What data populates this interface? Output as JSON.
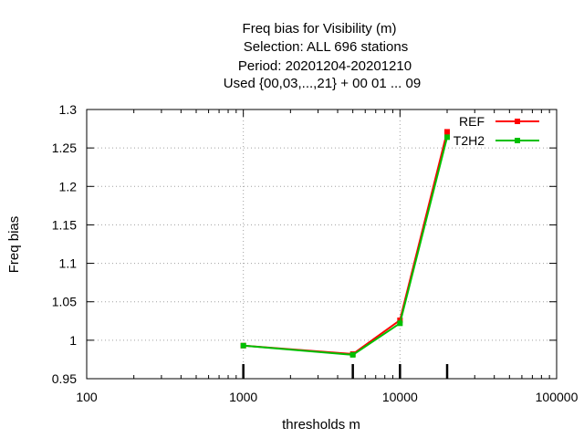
{
  "chart_data": {
    "type": "line",
    "title_lines": [
      "Freq bias  for Visibility (m)",
      "Selection: ALL    696 stations",
      "Period: 20201204-20201210",
      "Used {00,03,...,21} + 00 01 ... 09"
    ],
    "xlabel": "thresholds m",
    "ylabel": "Freq bias",
    "x_scale": "log",
    "xlim": [
      100,
      100000
    ],
    "ylim": [
      0.95,
      1.3
    ],
    "x_ticks": [
      100,
      1000,
      10000,
      100000
    ],
    "x_tick_labels": [
      "100",
      "1000",
      "10000",
      "100000"
    ],
    "y_ticks": [
      0.95,
      1,
      1.05,
      1.1,
      1.15,
      1.2,
      1.25,
      1.3
    ],
    "y_tick_labels": [
      "0.95",
      "1",
      "1.05",
      "1.1",
      "1.15",
      "1.2",
      "1.25",
      "1.3"
    ],
    "grid": true,
    "legend_position": "top-right",
    "threshold_markers": [
      1000,
      5000,
      10000,
      20000
    ],
    "x": [
      1000,
      5000,
      10000,
      20000
    ],
    "series": [
      {
        "name": "REF",
        "color": "#ff0000",
        "values": [
          0.993,
          0.982,
          1.026,
          1.271
        ]
      },
      {
        "name": "T2H2",
        "color": "#00c000",
        "values": [
          0.993,
          0.981,
          1.022,
          1.264
        ]
      }
    ]
  }
}
